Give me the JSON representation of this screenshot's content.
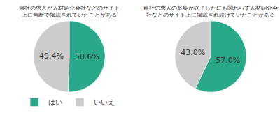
{
  "chart_data": [
    {
      "type": "pie",
      "title": "自社の求人が人材紹介会社などのサイト\n上に無断で掲載されていたことがある",
      "categories": [
        "はい",
        "いいえ"
      ],
      "values": [
        50.6,
        49.4
      ],
      "value_labels": [
        "50.6%",
        "49.4%"
      ],
      "colors": [
        "#2aa88a",
        "#cccccc"
      ],
      "data_labels": true,
      "legend": "lower center"
    },
    {
      "type": "pie",
      "title": "自社の求人の募集が終了したにも関わらず人材紹介会\n社などのサイト上に掲載され続けていたことがある",
      "categories": [
        "はい",
        "いいえ"
      ],
      "values": [
        57.0,
        43.0
      ],
      "value_labels": [
        "57.0%",
        "43.0%"
      ],
      "colors": [
        "#2aa88a",
        "#cccccc"
      ],
      "data_labels": true,
      "legend": "lower center"
    }
  ]
}
